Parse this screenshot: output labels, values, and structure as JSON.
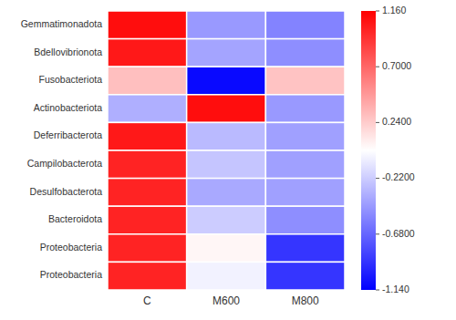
{
  "chart_data": {
    "type": "heatmap",
    "rows": [
      "Gemmatimonadota",
      "Bdellovibrionota",
      "Fusobacteriota",
      "Actinobacteriota",
      "Deferribacterota",
      "Campilobacterota",
      "Desulfobacterota",
      "Bacteroidota",
      "Proteobacteria",
      "Proteobacteria"
    ],
    "categories": [
      "C",
      "M600",
      "M800"
    ],
    "values": [
      [
        1.1,
        -0.45,
        -0.55
      ],
      [
        1.05,
        -0.4,
        -0.5
      ],
      [
        0.3,
        -1.1,
        0.28
      ],
      [
        -0.35,
        1.1,
        -0.45
      ],
      [
        1.05,
        -0.3,
        -0.42
      ],
      [
        1.0,
        -0.25,
        -0.42
      ],
      [
        1.0,
        -0.38,
        -0.42
      ],
      [
        1.0,
        -0.22,
        -0.5
      ],
      [
        1.0,
        0.05,
        -0.9
      ],
      [
        1.0,
        -0.05,
        -0.9
      ]
    ],
    "colors": [
      "#0000ff",
      "#ffffff",
      "#ff0000"
    ],
    "colorbar": {
      "range": [
        -1.14,
        1.16
      ],
      "ticks": [
        {
          "value": 1.16,
          "label": "1.160"
        },
        {
          "value": 0.7,
          "label": "0.7000"
        },
        {
          "value": 0.24,
          "label": "0.2400"
        },
        {
          "value": -0.22,
          "label": "-0.2200"
        },
        {
          "value": -0.68,
          "label": "-0.6800"
        },
        {
          "value": -1.14,
          "label": "-1.140"
        }
      ]
    }
  }
}
